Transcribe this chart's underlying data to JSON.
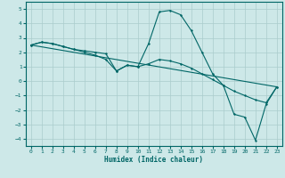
{
  "xlabel": "Humidex (Indice chaleur)",
  "xlim": [
    -0.5,
    23.5
  ],
  "ylim": [
    -4.5,
    5.5
  ],
  "yticks": [
    -4,
    -3,
    -2,
    -1,
    0,
    1,
    2,
    3,
    4,
    5
  ],
  "xticks": [
    0,
    1,
    2,
    3,
    4,
    5,
    6,
    7,
    8,
    9,
    10,
    11,
    12,
    13,
    14,
    15,
    16,
    17,
    18,
    19,
    20,
    21,
    22,
    23
  ],
  "bg_color": "#cde8e8",
  "grid_color": "#aacccc",
  "line_color": "#006666",
  "line1_x": [
    0,
    1,
    2,
    3,
    4,
    5,
    6,
    7,
    8,
    9,
    10,
    11,
    12,
    13,
    14,
    15,
    16,
    17,
    18,
    19,
    20,
    21,
    22,
    23
  ],
  "line1_y": [
    2.5,
    2.7,
    2.6,
    2.4,
    2.2,
    2.1,
    2.0,
    1.9,
    0.7,
    1.1,
    1.0,
    2.6,
    4.8,
    4.9,
    4.6,
    3.5,
    2.0,
    0.5,
    -0.3,
    -2.3,
    -2.5,
    -4.1,
    -1.6,
    -0.4
  ],
  "line2_x": [
    0,
    1,
    2,
    3,
    4,
    5,
    6,
    7,
    8,
    9,
    10,
    11,
    12,
    13,
    14,
    15,
    16,
    17,
    18,
    19,
    20,
    21,
    22,
    23
  ],
  "line2_y": [
    2.5,
    2.7,
    2.6,
    2.4,
    2.2,
    2.0,
    1.8,
    1.5,
    0.7,
    1.1,
    1.0,
    1.2,
    1.5,
    1.4,
    1.2,
    0.9,
    0.5,
    0.1,
    -0.3,
    -0.7,
    -1.0,
    -1.3,
    -1.5,
    -0.4
  ],
  "line3_x": [
    0,
    23
  ],
  "line3_y": [
    2.5,
    -0.4
  ],
  "tick_fontsize": 4.5,
  "xlabel_fontsize": 5.5
}
